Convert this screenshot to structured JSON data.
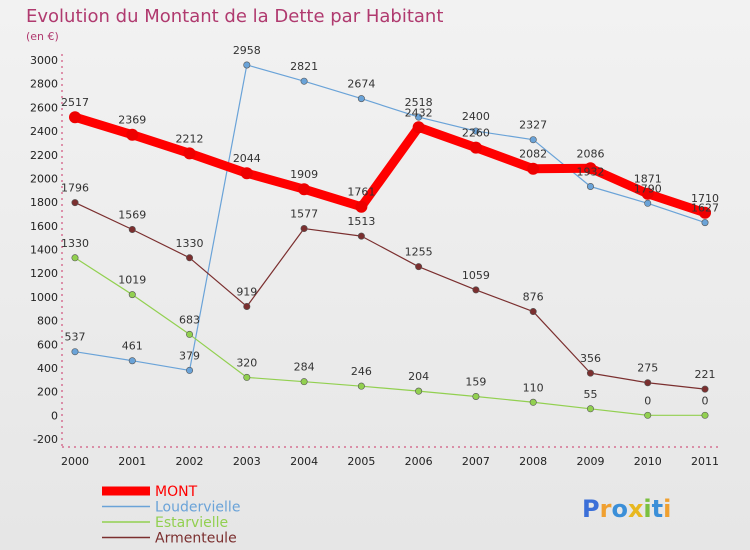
{
  "chart_data": {
    "type": "line",
    "title": "Evolution du Montant de la Dette par Habitant",
    "subtitle": "(en €)",
    "x": [
      "2000",
      "2001",
      "2002",
      "2003",
      "2004",
      "2005",
      "2006",
      "2007",
      "2008",
      "2009",
      "2010",
      "2011"
    ],
    "ylim": [
      -200,
      3000
    ],
    "yticks": [
      -200,
      0,
      200,
      400,
      600,
      800,
      1000,
      1200,
      1400,
      1600,
      1800,
      2000,
      2200,
      2400,
      2600,
      2800,
      3000
    ],
    "grid": false,
    "legend_position": "bottom-left",
    "series": [
      {
        "name": "MONT",
        "color": "#ff0000",
        "values": [
          2517,
          2369,
          2212,
          2044,
          1909,
          1761,
          2432,
          2260,
          2082,
          2086,
          1871,
          1710
        ]
      },
      {
        "name": "Loudervielle",
        "color": "#6aa3d8",
        "values": [
          537,
          461,
          379,
          2958,
          2821,
          2674,
          2518,
          2400,
          2327,
          1932,
          1790,
          1627
        ]
      },
      {
        "name": "Estarvielle",
        "color": "#92d050",
        "values": [
          1330,
          1019,
          683,
          320,
          284,
          246,
          204,
          159,
          110,
          55,
          0,
          0
        ]
      },
      {
        "name": "Armenteule",
        "color": "#7b2f2f",
        "values": [
          1796,
          1569,
          1330,
          919,
          1577,
          1513,
          1255,
          1059,
          876,
          356,
          275,
          221
        ]
      }
    ]
  },
  "brand": {
    "letters": [
      "P",
      "r",
      "o",
      "x",
      "i",
      "t",
      "i"
    ],
    "colors": [
      "#3b6fd8",
      "#f0a030",
      "#3b8fd8",
      "#e8b820",
      "#7ac040",
      "#3b8fd8",
      "#f0a030"
    ]
  }
}
